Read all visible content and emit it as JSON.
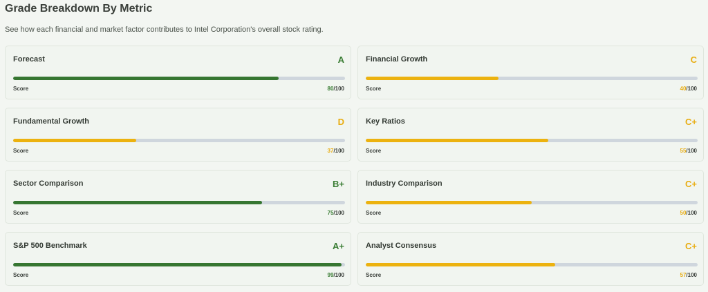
{
  "header": {
    "title": "Grade Breakdown By Metric",
    "subtitle": "See how each financial and market factor contributes to Intel Corporation's overall stock rating."
  },
  "score_label": "Score",
  "max_suffix": "/100",
  "colors": {
    "green": "#367631",
    "amber": "#ecb20f",
    "track": "#cfd6dd"
  },
  "metrics": [
    {
      "title": "Forecast",
      "grade": "A",
      "score": "80",
      "tone": "green"
    },
    {
      "title": "Financial Growth",
      "grade": "C",
      "score": "40",
      "tone": "amber"
    },
    {
      "title": "Fundamental Growth",
      "grade": "D",
      "score": "37",
      "tone": "amber"
    },
    {
      "title": "Key Ratios",
      "grade": "C+",
      "score": "55",
      "tone": "amber"
    },
    {
      "title": "Sector Comparison",
      "grade": "B+",
      "score": "75",
      "tone": "green"
    },
    {
      "title": "Industry Comparison",
      "grade": "C+",
      "score": "50",
      "tone": "amber"
    },
    {
      "title": "S&P 500 Benchmark",
      "grade": "A+",
      "score": "99",
      "tone": "green"
    },
    {
      "title": "Analyst Consensus",
      "grade": "C+",
      "score": "57",
      "tone": "amber"
    }
  ]
}
